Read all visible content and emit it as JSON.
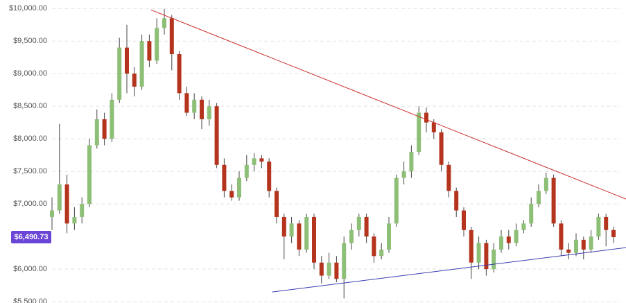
{
  "chart_data": {
    "type": "candlestick",
    "ylim": [
      5480,
      10130
    ],
    "yticks": [
      {
        "value": 5500,
        "label": "$5,500.00"
      },
      {
        "value": 6000,
        "label": "$6,000.00"
      },
      {
        "value": 7000,
        "label": "$7,000.00"
      },
      {
        "value": 7500,
        "label": "$7,500.00"
      },
      {
        "value": 8000,
        "label": "$8,000.00"
      },
      {
        "value": 8500,
        "label": "$8,500.00"
      },
      {
        "value": 9000,
        "label": "$9,000.00"
      },
      {
        "value": 9500,
        "label": "$9,500.00"
      },
      {
        "value": 10000,
        "label": "$10,000.00"
      }
    ],
    "grid": true,
    "up_color": "#8dbf76",
    "down_color": "#b5341d",
    "open": [
      6800,
      6900,
      7300,
      6700,
      6800,
      7000,
      7900,
      8300,
      8000,
      8600,
      9400,
      9000,
      8800,
      9500,
      9200,
      9700,
      9850,
      9300,
      8700,
      8400,
      8600,
      8300,
      8500,
      7600,
      7200,
      7100,
      7400,
      7600,
      7700,
      7650,
      7200,
      6800,
      6500,
      6700,
      6300,
      6800,
      6100,
      5900,
      6100,
      5850,
      6400,
      6600,
      6800,
      6500,
      6200,
      6300,
      6700,
      7400,
      7500,
      7800,
      8400,
      8250,
      8100,
      7600,
      7200,
      6900,
      6600,
      6100,
      6400,
      6000,
      6300,
      6500,
      6400,
      6600,
      6700,
      7000,
      7200,
      7400,
      6700,
      6300,
      6250,
      6450,
      6300,
      6500,
      6800,
      6600
    ],
    "high": [
      7100,
      8230,
      7450,
      6950,
      7100,
      8000,
      8450,
      8400,
      8700,
      9550,
      9750,
      9100,
      9600,
      9600,
      9850,
      9990,
      9900,
      9350,
      8800,
      8700,
      8650,
      8600,
      8550,
      7700,
      7300,
      7500,
      7750,
      7780,
      7750,
      7700,
      7250,
      6850,
      6800,
      6750,
      6850,
      6850,
      6200,
      6250,
      6200,
      6500,
      6700,
      6850,
      6850,
      6550,
      6400,
      6800,
      7450,
      7650,
      7900,
      8500,
      8480,
      8300,
      8150,
      7650,
      7250,
      6950,
      6650,
      6500,
      6450,
      6400,
      6600,
      6600,
      6700,
      6750,
      7100,
      7300,
      7480,
      7450,
      6750,
      6400,
      6550,
      6500,
      6600,
      6850,
      6850,
      6650
    ],
    "low": [
      6600,
      6850,
      6550,
      6600,
      6700,
      6950,
      7850,
      7900,
      7950,
      8550,
      8700,
      8650,
      8750,
      9100,
      9150,
      9600,
      9050,
      8600,
      8350,
      8300,
      8150,
      8200,
      7550,
      7100,
      7050,
      7050,
      7350,
      7500,
      7550,
      7100,
      6700,
      6150,
      6400,
      6200,
      6250,
      6000,
      5780,
      5850,
      5800,
      5550,
      6300,
      6500,
      6400,
      6100,
      6150,
      6250,
      6650,
      7300,
      7400,
      7750,
      8100,
      8000,
      7500,
      7100,
      6800,
      6500,
      5850,
      6000,
      5900,
      5950,
      6250,
      6300,
      6350,
      6550,
      6650,
      6950,
      7150,
      6650,
      6200,
      6150,
      6200,
      6150,
      6250,
      6450,
      6350,
      6400
    ],
    "close": [
      6900,
      7300,
      6700,
      6800,
      7000,
      7900,
      8300,
      8000,
      8600,
      9400,
      9000,
      8800,
      9500,
      9200,
      9700,
      9850,
      9300,
      8700,
      8400,
      8600,
      8300,
      8500,
      7600,
      7200,
      7100,
      7400,
      7600,
      7700,
      7650,
      7200,
      6800,
      6500,
      6700,
      6300,
      6800,
      6100,
      5900,
      6100,
      5850,
      6400,
      6600,
      6800,
      6500,
      6200,
      6300,
      6700,
      7400,
      7500,
      7800,
      8400,
      8250,
      8100,
      7600,
      7200,
      6900,
      6600,
      6100,
      6400,
      6000,
      6300,
      6500,
      6400,
      6600,
      6700,
      7000,
      7200,
      7400,
      6700,
      6300,
      6250,
      6450,
      6300,
      6500,
      6800,
      6600,
      6490.73
    ],
    "trendlines": [
      {
        "color": "#cc2b2b",
        "x": [
          13.2,
          76.7
        ],
        "y": [
          9979,
          7074
        ]
      },
      {
        "color": "#3b3bb0",
        "x": [
          29.4,
          76.7
        ],
        "y": [
          5649,
          6330
        ]
      }
    ],
    "price_marker": {
      "color": "#6b45d6",
      "values": [
        6490.73
      ],
      "value_labels": [
        "$6,490.73"
      ]
    }
  }
}
